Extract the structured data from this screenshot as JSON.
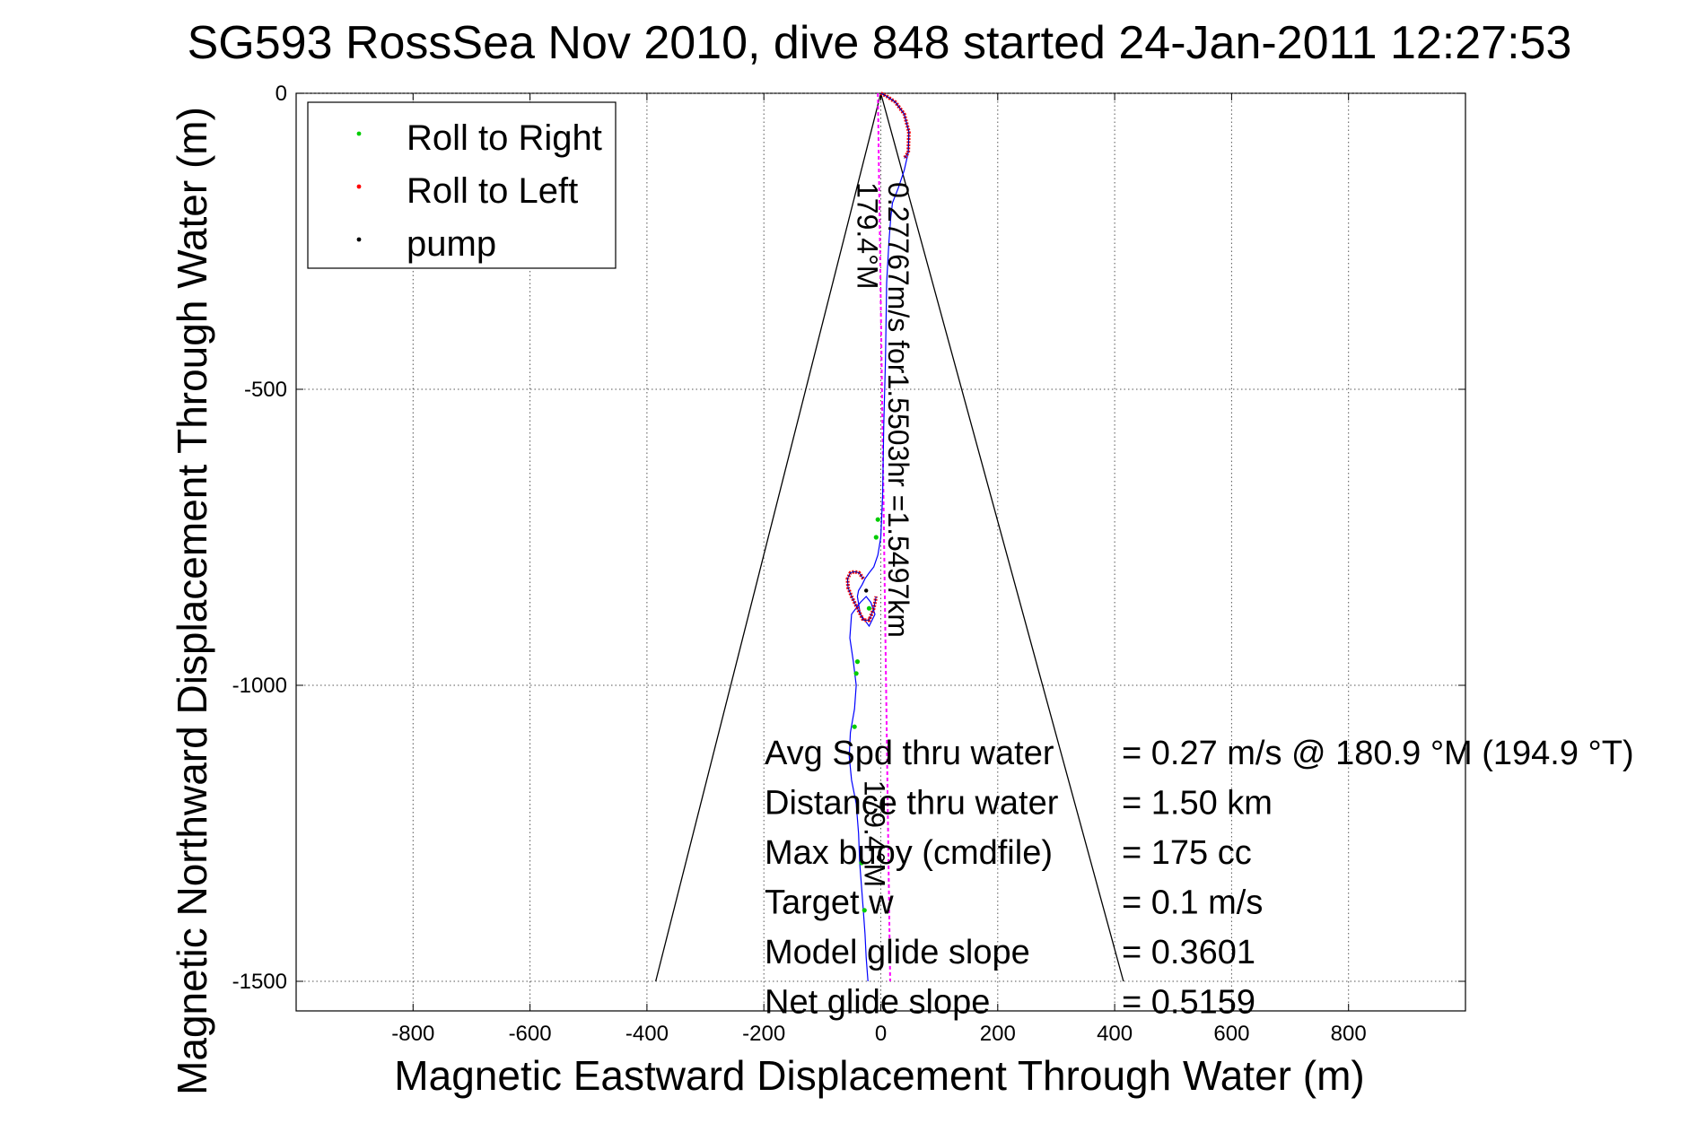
{
  "chart_data": {
    "type": "line",
    "title": "SG593 RossSea Nov 2010, dive 848 started 24-Jan-2011 12:27:53",
    "xlabel": "Magnetic Eastward Displacement Through Water (m)",
    "ylabel": "Magnetic Northward Displacement Through Water (m)",
    "xlim": [
      -1000,
      1000
    ],
    "ylim": [
      -1550,
      0
    ],
    "xticks": [
      -800,
      -600,
      -400,
      -200,
      0,
      200,
      400,
      600,
      800
    ],
    "yticks": [
      0,
      -500,
      -1000,
      -1500
    ],
    "grid": true,
    "legend_position": "top-left",
    "legend": [
      {
        "label": "Roll to Right",
        "color": "#00cc00"
      },
      {
        "label": "Roll to Left",
        "color": "#ff0000"
      },
      {
        "label": "pump",
        "color": "#000000"
      }
    ],
    "cone": {
      "apex": [
        0,
        0
      ],
      "left_end": [
        -385,
        -1500
      ],
      "right_end": [
        415,
        -1500
      ]
    },
    "dive_track": {
      "color": "#0000ff",
      "x": [
        0,
        10,
        25,
        40,
        48,
        47,
        40,
        30,
        20,
        17,
        14,
        10,
        8,
        5,
        3,
        0,
        -5,
        -12,
        -20,
        -27,
        -32,
        -38,
        -40,
        -35,
        -20,
        -10,
        -17,
        -25,
        -35,
        -50,
        -53,
        -47,
        -42,
        -45,
        -52,
        -54,
        -50,
        -42,
        -38,
        -36,
        -33,
        -30,
        -27,
        -25,
        -22
      ],
      "y": [
        0,
        -5,
        -15,
        -35,
        -65,
        -100,
        -130,
        -160,
        -185,
        -210,
        -250,
        -320,
        -450,
        -560,
        -680,
        -750,
        -780,
        -800,
        -810,
        -820,
        -830,
        -840,
        -850,
        -880,
        -900,
        -880,
        -860,
        -850,
        -860,
        -880,
        -920,
        -960,
        -1000,
        -1040,
        -1080,
        -1120,
        -1160,
        -1200,
        -1250,
        -1300,
        -1340,
        -1380,
        -1420,
        -1460,
        -1500
      ]
    },
    "roll_right": {
      "x": [
        -5,
        -8,
        -20,
        -40,
        -42,
        -45,
        -33,
        -28
      ],
      "y": [
        -720,
        -750,
        -870,
        -960,
        -980,
        -1070,
        -1300,
        -1380
      ]
    },
    "roll_left_arcs": [
      {
        "x": [
          0,
          10,
          25,
          40,
          48,
          47,
          40
        ],
        "y": [
          0,
          -5,
          -15,
          -35,
          -65,
          -100,
          -110
        ]
      },
      {
        "x": [
          -30,
          -37,
          -45,
          -52,
          -57,
          -56,
          -50,
          -40,
          -30,
          -20,
          -12,
          -8
        ],
        "y": [
          -820,
          -810,
          -808,
          -810,
          -820,
          -835,
          -850,
          -870,
          -890,
          -890,
          -870,
          -850
        ]
      }
    ],
    "pump": {
      "x": [
        -25
      ],
      "y": [
        -840
      ]
    },
    "reference_line": {
      "color": "#ff00ff",
      "x": [
        -5,
        16
      ],
      "y": [
        0,
        -1500
      ]
    },
    "course_labels": [
      {
        "text": "179.4°M",
        "x": -40,
        "y": -150
      },
      {
        "text": "0.27767m/s for1.5503hr =1.5497km",
        "x": 13,
        "y": -150
      },
      {
        "text": "179.4°M",
        "x": -28,
        "y": -1160
      }
    ],
    "annotation_table": [
      {
        "label": "Avg Spd thru water",
        "value": "=  0.27 m/s @  180.9 °M (194.9 °T)"
      },
      {
        "label": "Distance thru water",
        "value": "=  1.50 km"
      },
      {
        "label": "Max buoy (cmdfile)",
        "value": "= 175 cc"
      },
      {
        "label": "Target w",
        "value": "= 0.1 m/s"
      },
      {
        "label": "Model glide slope",
        "value": "= 0.3601"
      },
      {
        "label": "Net glide slope",
        "value": "= 0.5159"
      }
    ]
  }
}
